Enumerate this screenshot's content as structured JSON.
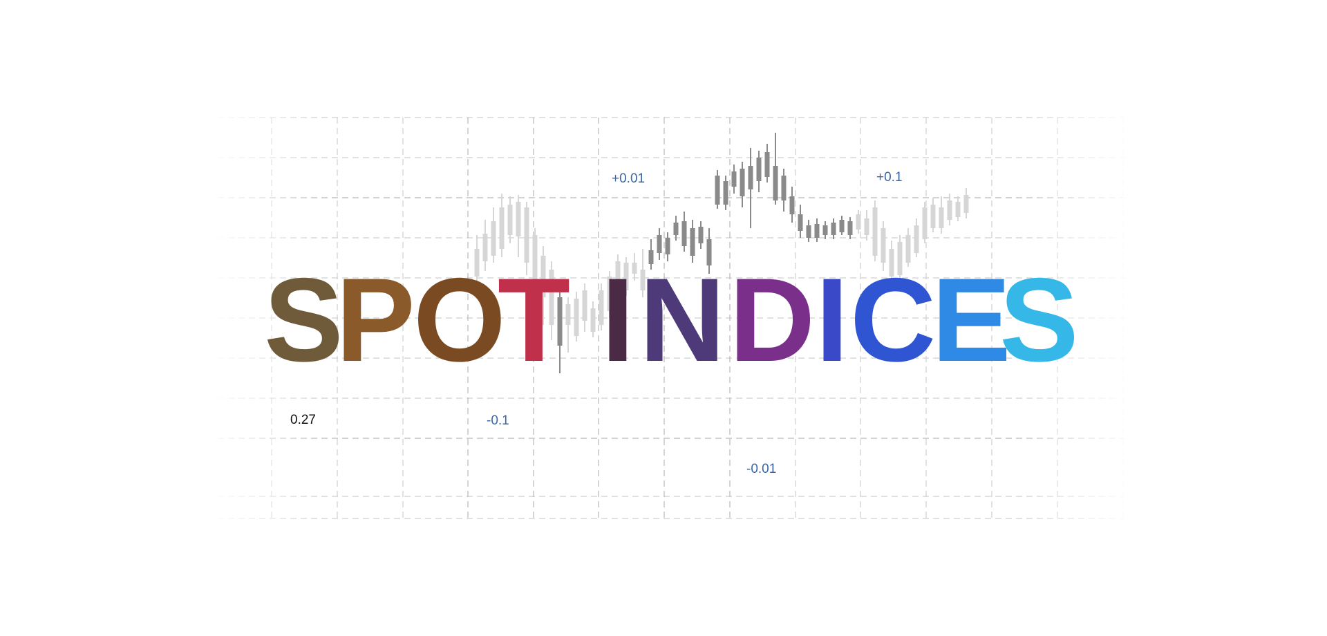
{
  "headline": {
    "text": "SPOT INDICES",
    "words": [
      {
        "text": "SPOT",
        "letters": [
          "S",
          "P",
          "O",
          "T"
        ]
      },
      {
        "text": "INDICES",
        "letters": [
          "I",
          "N",
          "D",
          "I",
          "C",
          "E",
          "S"
        ]
      }
    ],
    "letter_colors": [
      "#6f5a3a",
      "#8a5a2a",
      "#7a4a22",
      "#c0304a",
      "#4a2a45",
      "#4e3a78",
      "#7a2f8a",
      "#3a49c8",
      "#2f55d2",
      "#2f8ae6",
      "#35b7e8"
    ],
    "letter_accents": [
      "#5a8a3a",
      "#e0602a",
      "#5b3a1c",
      "#20b030",
      "#3a2a4a",
      "#9aa0ff",
      "#10c080",
      "#e040a0",
      "#3a4ab8",
      "#1ea0ff",
      "#7ad6f4"
    ]
  },
  "value_labels": [
    {
      "text": "+0.01",
      "color": "#3a66a8"
    },
    {
      "text": "+0.1",
      "color": "#3a66a8"
    },
    {
      "text": "0.27",
      "color": "#111111"
    },
    {
      "text": "-0.1",
      "color": "#3a66a8"
    },
    {
      "text": "-0.01",
      "color": "#3a66a8"
    }
  ],
  "background": {
    "page_color": "#ffffff",
    "grid_color": "#cfcfcf",
    "candle_color": "#8a8a8a",
    "candle_faded_color": "#d6d6d6"
  }
}
